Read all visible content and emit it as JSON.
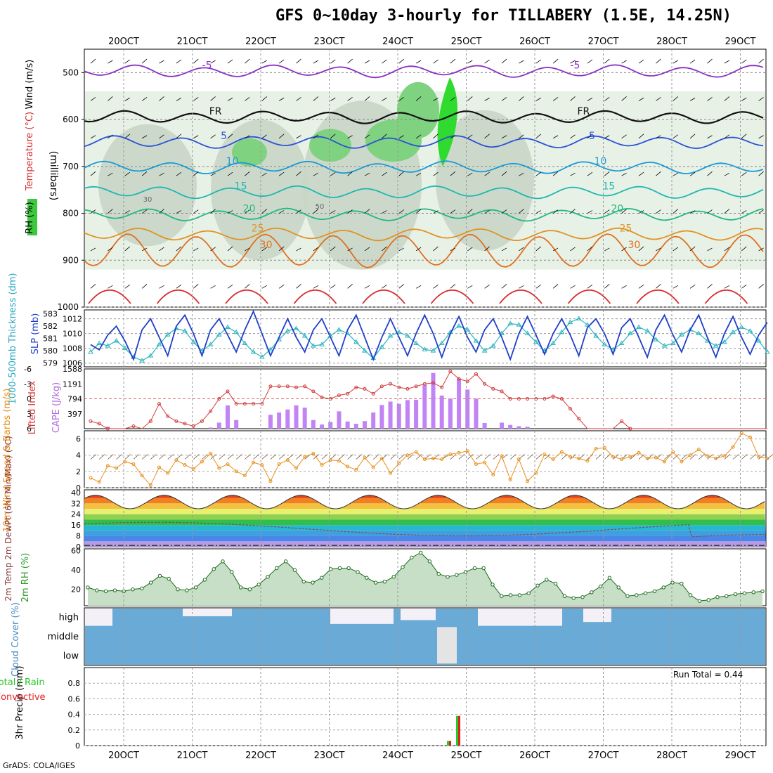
{
  "page": {
    "title": "GFS 0~10day 3-hourly for TILLABERY (1.5E, 14.25N)",
    "credit": "GrADS: COLA/IGES",
    "run_total": "Run Total = 0.44"
  },
  "colors": {
    "slp": "#1f3fc8",
    "thickness": "#2ab5c0",
    "lifted_index": "#d43a3a",
    "cape": "#c283f5",
    "wind10m": "#e8901c",
    "rh2m": "#2a9a2a",
    "cloud": "#6aaad6",
    "cloud_gap": "#f4f0f8",
    "rain_total": "#26c926",
    "rain_conv": "#e02020"
  },
  "chart_data": [
    {
      "id": "upper",
      "type": "contour",
      "ylabel_parts": [
        "RH (%)",
        "Temperature (°C)",
        "Wind (m/s)"
      ],
      "yaxis_title": "(millibars)",
      "y_ticks": [
        "500",
        "600",
        "700",
        "800",
        "900",
        "1000"
      ],
      "ylim": [
        450,
        1000
      ],
      "x_ticks": [
        "20OCT",
        "21OCT",
        "22OCT",
        "23OCT",
        "24OCT",
        "25OCT",
        "26OCT",
        "27OCT",
        "28OCT",
        "29OCT"
      ],
      "top_x_ticks": [
        "20OCT",
        "21OCT",
        "22OCT",
        "23OCT",
        "24OCT",
        "25OCT",
        "26OCT",
        "27OCT",
        "28OCT",
        "29OCT"
      ],
      "isotherms": [
        {
          "label": "-5",
          "color": "#8a2fc0",
          "level": 497
        },
        {
          "label": "FR",
          "color": "#111111",
          "level": 595
        },
        {
          "label": "5",
          "color": "#2a52d6",
          "level": 648
        },
        {
          "label": "10",
          "color": "#1c9ad8",
          "level": 702
        },
        {
          "label": "15",
          "color": "#1fb7b0",
          "level": 755
        },
        {
          "label": "20",
          "color": "#22b880",
          "level": 803
        },
        {
          "label": "25",
          "color": "#e09225",
          "level": 845
        },
        {
          "label": "30",
          "color": "#e07020",
          "level": 880
        }
      ],
      "rh_labels": [
        "30",
        "50"
      ]
    },
    {
      "id": "slp",
      "type": "line",
      "ylabel_left": "1000-500mb Thickness (dm)",
      "ylabel_right": "SLP (mb)",
      "thickness_ticks": [
        "583",
        "582",
        "581",
        "580",
        "579"
      ],
      "slp_ticks": [
        "1012",
        "1010",
        "1008",
        "1006"
      ],
      "thickness_range": [
        578.7,
        583.3
      ],
      "slp_range": [
        1005.5,
        1013.2
      ],
      "series": [
        {
          "name": "SLP (mb)",
          "values": [
            1008.5,
            1007.8,
            1009.8,
            1011.0,
            1009.0,
            1006.5,
            1010.5,
            1012.0,
            1009.5,
            1007.0,
            1011.0,
            1012.5,
            1010.0,
            1007.0,
            1010.5,
            1012.0,
            1009.8,
            1007.5,
            1010.5,
            1013.0,
            1010.0,
            1007.0,
            1009.5,
            1012.0,
            1009.5,
            1007.5,
            1010.5,
            1012.0,
            1009.5,
            1007.0,
            1010.5,
            1012.5,
            1009.5,
            1006.5,
            1009.5,
            1012.0,
            1009.5,
            1007.0,
            1010.0,
            1012.5,
            1010.0,
            1006.8,
            1010.0,
            1012.3,
            1009.5,
            1007.5,
            1010.5,
            1012.0,
            1009.5,
            1006.5,
            1010.0,
            1012.3,
            1009.8,
            1007.2,
            1010.0,
            1012.0,
            1009.8,
            1007.0,
            1010.8,
            1012.0,
            1010.0,
            1007.2,
            1010.8,
            1012.0,
            1009.5,
            1006.8,
            1010.5,
            1012.5,
            1009.8,
            1007.5,
            1010.5,
            1012.5,
            1009.5,
            1006.8,
            1010.0,
            1012.3,
            1009.5,
            1007.2,
            1009.8,
            1011.5
          ]
        },
        {
          "name": "Thickness (dm)",
          "values": [
            579.9,
            580.6,
            580.4,
            580.8,
            580.2,
            579.5,
            579.2,
            579.6,
            580.5,
            581.3,
            581.8,
            581.6,
            580.7,
            580.0,
            580.5,
            581.3,
            581.9,
            581.5,
            580.6,
            579.9,
            579.5,
            580.1,
            580.9,
            581.6,
            581.8,
            581.2,
            580.4,
            580.5,
            581.2,
            581.7,
            581.4,
            580.7,
            580.0,
            579.4,
            580.3,
            581.2,
            581.5,
            581.2,
            580.6,
            580.1,
            580.0,
            580.6,
            581.5,
            582.0,
            581.7,
            580.8,
            580.0,
            580.4,
            581.4,
            582.2,
            582.1,
            581.4,
            580.7,
            580.0,
            580.6,
            581.5,
            582.3,
            582.6,
            582.1,
            581.2,
            580.5,
            580.1,
            580.6,
            581.4,
            581.9,
            581.6,
            580.9,
            580.4,
            580.6,
            581.3,
            581.7,
            581.4,
            580.8,
            580.4,
            580.7,
            581.5,
            581.9,
            581.6,
            580.8,
            579.9
          ]
        }
      ]
    },
    {
      "id": "cape",
      "type": "bar+line",
      "ylabel_left": "Lifted Index",
      "ylabel_right": "CAPE (J/kg)",
      "li_ticks": [
        "-6",
        "-3",
        "0",
        "3",
        "6"
      ],
      "cape_ticks": [
        "1588",
        "1191",
        "794",
        "397"
      ],
      "cape_max": 1588,
      "li_range": [
        -6,
        6
      ],
      "lifted_index": [
        4.5,
        5.0,
        6.0,
        6.5,
        7.0,
        5.5,
        6.5,
        4.5,
        1.0,
        3.5,
        4.5,
        5.0,
        5.5,
        4.5,
        2.5,
        0.0,
        -1.5,
        1.0,
        1.0,
        1.0,
        1.0,
        -2.5,
        -2.5,
        -2.5,
        -2.3,
        -2.5,
        -1.5,
        -0.3,
        0.0,
        -0.7,
        -1.0,
        -2.3,
        -2.0,
        -1.0,
        -2.5,
        -3.0,
        -2.3,
        -2.0,
        -2.5,
        -3.0,
        -3.2,
        -2.3,
        -5.5,
        -4.0,
        -3.5,
        -5.0,
        -3.0,
        -2.0,
        -1.5,
        0.0,
        0.0,
        0.0,
        0.0,
        0.0,
        -0.5,
        0.0,
        2.0,
        4.0,
        6.2,
        7.0,
        7.5,
        7.5,
        4.5,
        6.0,
        8.0,
        8.5,
        7.5,
        8.0,
        8.5,
        9.0,
        7.5,
        7.5,
        8.5,
        8.5,
        9.0,
        8.5,
        8.0,
        7.5,
        8.0,
        8.5
      ],
      "cape": [
        0,
        0,
        45,
        0,
        0,
        0,
        0,
        0,
        0,
        0,
        0,
        0,
        0,
        0,
        30,
        160,
        620,
        230,
        0,
        0,
        0,
        370,
        430,
        510,
        620,
        560,
        230,
        110,
        180,
        460,
        190,
        130,
        200,
        430,
        630,
        720,
        660,
        760,
        770,
        1160,
        1480,
        880,
        800,
        1330,
        1040,
        800,
        150,
        0,
        160,
        100,
        65,
        50,
        0,
        0,
        0,
        0,
        0,
        0,
        0,
        0,
        0,
        0,
        0,
        0,
        0,
        0,
        0,
        0,
        0,
        0,
        0,
        0,
        0,
        0,
        0,
        0,
        0,
        0,
        0,
        0
      ]
    },
    {
      "id": "wind10m",
      "type": "line",
      "ylabel": "10m Wind Speed & Barbs (m/s)",
      "ylim": [
        0,
        7
      ],
      "y_ticks": [
        "0",
        "2",
        "4",
        "6"
      ],
      "values": [
        1.2,
        0.7,
        2.7,
        2.4,
        3.2,
        2.9,
        1.5,
        0.3,
        2.5,
        1.8,
        3.4,
        2.8,
        2.3,
        3.2,
        4.2,
        2.4,
        2.9,
        2.0,
        1.5,
        3.1,
        2.8,
        0.8,
        2.9,
        3.4,
        2.4,
        3.8,
        4.2,
        2.8,
        3.4,
        3.3,
        2.6,
        2.2,
        3.7,
        2.5,
        3.6,
        1.8,
        3.0,
        4.0,
        4.4,
        3.5,
        3.6,
        3.5,
        4.1,
        4.3,
        4.5,
        2.9,
        3.1,
        1.6,
        3.9,
        1.0,
        3.5,
        0.8,
        1.8,
        4.1,
        3.5,
        4.4,
        3.8,
        3.6,
        3.3,
        4.8,
        4.9,
        3.8,
        3.5,
        3.8,
        4.3,
        3.6,
        3.7,
        3.2,
        4.4,
        3.2,
        4.0,
        4.7,
        3.9,
        3.6,
        3.9,
        5.0,
        6.7,
        6.2,
        3.8,
        3.6
      ]
    },
    {
      "id": "temp2m",
      "type": "area",
      "ylabel": "2m Temp 2m DewPt (6hr Min/Max) (°C)",
      "ylim": [
        0,
        42
      ],
      "y_ticks": [
        "0",
        "8",
        "16",
        "24",
        "32",
        "40"
      ],
      "temp_max": 38,
      "temp_min": 28
    },
    {
      "id": "rh2m",
      "type": "area",
      "ylabel": "2m RH (%)",
      "ylim": [
        3,
        62
      ],
      "y_ticks": [
        "20",
        "40",
        "60"
      ],
      "values": [
        22,
        19,
        18,
        19,
        18,
        20,
        21,
        27,
        34,
        31,
        20,
        19,
        22,
        30,
        41,
        49,
        38,
        22,
        20,
        25,
        33,
        42,
        49,
        40,
        28,
        27,
        32,
        41,
        42,
        42,
        38,
        32,
        27,
        28,
        33,
        43,
        53,
        58,
        49,
        36,
        33,
        35,
        38,
        42,
        42,
        25,
        13,
        14,
        14,
        16,
        24,
        30,
        26,
        13,
        11,
        12,
        17,
        23,
        32,
        22,
        13,
        14,
        16,
        18,
        22,
        27,
        26,
        14,
        8,
        9,
        12,
        13,
        15,
        16,
        17,
        18
      ]
    },
    {
      "id": "cloud",
      "type": "heatmap",
      "ylabel": "Cloud Cover (%)",
      "layers": [
        "high",
        "middle",
        "low"
      ]
    },
    {
      "id": "precip",
      "type": "bar",
      "ylabel_left": "Total / Rain Convective",
      "ylabel": "3hr Precip (mm)",
      "ylim": [
        0,
        1.0
      ],
      "y_ticks": [
        "0",
        "0.2",
        "0.4",
        "0.6",
        "0.8"
      ],
      "x_ticks": [
        "20OCT",
        "21OCT",
        "22OCT",
        "23OCT",
        "24OCT",
        "25OCT",
        "26OCT",
        "27OCT",
        "28OCT",
        "29OCT"
      ],
      "bars": [
        {
          "x_index": 41,
          "total": 0.06,
          "convective": 0.06
        },
        {
          "x_index": 42,
          "total": 0.38,
          "convective": 0.38
        }
      ]
    }
  ]
}
